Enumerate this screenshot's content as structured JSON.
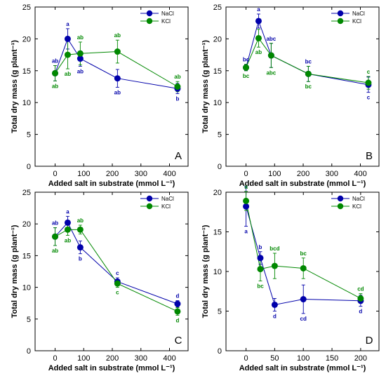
{
  "colors": {
    "NaCl": "#0000aa",
    "KCl": "#008800",
    "axis": "#000000"
  },
  "chart_data": [
    {
      "panel": "A",
      "type": "line",
      "xlabel": "Added salt in substrate (mmol L⁻¹)",
      "ylabel": "Total dry mass (g plant⁻¹)",
      "ylim": [
        0,
        25
      ],
      "yticks": [
        0,
        5,
        10,
        15,
        20,
        25
      ],
      "xticks": [
        0,
        100,
        200,
        300,
        400
      ],
      "xlim": [
        -70,
        465
      ],
      "legend_position": "top-right",
      "series": [
        {
          "name": "NaCl",
          "x": [
            0,
            44,
            88,
            218,
            428
          ],
          "y": [
            14.6,
            20.0,
            16.9,
            13.8,
            12.2
          ],
          "err": [
            1.2,
            1.6,
            1.2,
            1.4,
            0.8
          ],
          "labels": [
            "ab",
            "a",
            "ab",
            "ab",
            "b"
          ]
        },
        {
          "name": "KCl",
          "x": [
            0,
            44,
            88,
            218,
            428
          ],
          "y": [
            14.6,
            17.5,
            17.7,
            18.0,
            12.5
          ],
          "err": [
            1.2,
            2.2,
            1.8,
            1.8,
            0.8
          ],
          "labels": [
            "ab",
            "ab",
            "ab",
            "ab",
            "ab"
          ]
        }
      ]
    },
    {
      "panel": "B",
      "type": "line",
      "xlabel": "Added salt in substrate (mmol L⁻¹)",
      "ylabel": "Total dry mass (g plant⁻¹)",
      "ylim": [
        0,
        25
      ],
      "yticks": [
        0,
        5,
        10,
        15,
        20,
        25
      ],
      "xticks": [
        0,
        100,
        200,
        300,
        400
      ],
      "xlim": [
        -70,
        465
      ],
      "legend_position": "top-right",
      "series": [
        {
          "name": "NaCl",
          "x": [
            0,
            44,
            88,
            218,
            428
          ],
          "y": [
            15.5,
            22.8,
            17.4,
            14.5,
            12.8
          ],
          "err": [
            0.5,
            1.1,
            1.9,
            1.2,
            1.2
          ],
          "labels": [
            "bc",
            "a",
            "abc",
            "bc",
            "c"
          ]
        },
        {
          "name": "KCl",
          "x": [
            0,
            44,
            88,
            218,
            428
          ],
          "y": [
            15.5,
            20.1,
            17.4,
            14.5,
            13.1
          ],
          "err": [
            0.5,
            1.4,
            1.9,
            1.2,
            1.0
          ],
          "labels": [
            "bc",
            "ab",
            "abc",
            "bc",
            "c"
          ]
        }
      ]
    },
    {
      "panel": "C",
      "type": "line",
      "xlabel": "Added salt in substrate (mmol L⁻¹)",
      "ylabel": "Total dry mass (g plant⁻¹)",
      "ylim": [
        0,
        25
      ],
      "yticks": [
        0,
        5,
        10,
        15,
        20,
        25
      ],
      "xticks": [
        0,
        100,
        200,
        300,
        400
      ],
      "xlim": [
        -70,
        465
      ],
      "legend_position": "top-right",
      "series": [
        {
          "name": "NaCl",
          "x": [
            0,
            44,
            88,
            218,
            428
          ],
          "y": [
            18.0,
            20.2,
            16.3,
            10.9,
            7.4
          ],
          "err": [
            1.4,
            1.0,
            1.0,
            0.6,
            0.5
          ],
          "labels": [
            "ab",
            "a",
            "b",
            "c",
            "d"
          ]
        },
        {
          "name": "KCl",
          "x": [
            0,
            44,
            88,
            218,
            428
          ],
          "y": [
            18.0,
            19.1,
            19.1,
            10.6,
            6.2
          ],
          "err": [
            1.4,
            0.9,
            0.7,
            0.6,
            0.6
          ],
          "labels": [
            "ab",
            "ab",
            "ab",
            "c",
            "d"
          ]
        }
      ]
    },
    {
      "panel": "D",
      "type": "line",
      "xlabel": "Added salt in substrate (mmol L⁻¹)",
      "ylabel": "Total dry mass (g plant⁻¹)",
      "ylim": [
        0,
        20
      ],
      "yticks": [
        0,
        5,
        10,
        15,
        20
      ],
      "xticks": [
        0,
        50,
        100,
        150,
        200
      ],
      "xlim": [
        -35,
        232
      ],
      "legend_position": "top-right",
      "series": [
        {
          "name": "NaCl",
          "x": [
            0,
            25,
            50,
            100,
            200
          ],
          "y": [
            18.2,
            11.7,
            5.8,
            6.5,
            6.3
          ],
          "err": [
            2.5,
            0.8,
            0.8,
            1.8,
            0.7
          ],
          "labels": [
            "a",
            "b",
            "d",
            "cd",
            "d"
          ]
        },
        {
          "name": "KCl",
          "x": [
            0,
            25,
            50,
            100,
            200
          ],
          "y": [
            18.9,
            10.3,
            10.7,
            10.4,
            6.6
          ],
          "err": [
            1.2,
            1.5,
            1.6,
            1.3,
            0.6
          ],
          "labels": [
            "a",
            "bc",
            "bcd",
            "bc",
            "cd"
          ]
        }
      ]
    }
  ]
}
